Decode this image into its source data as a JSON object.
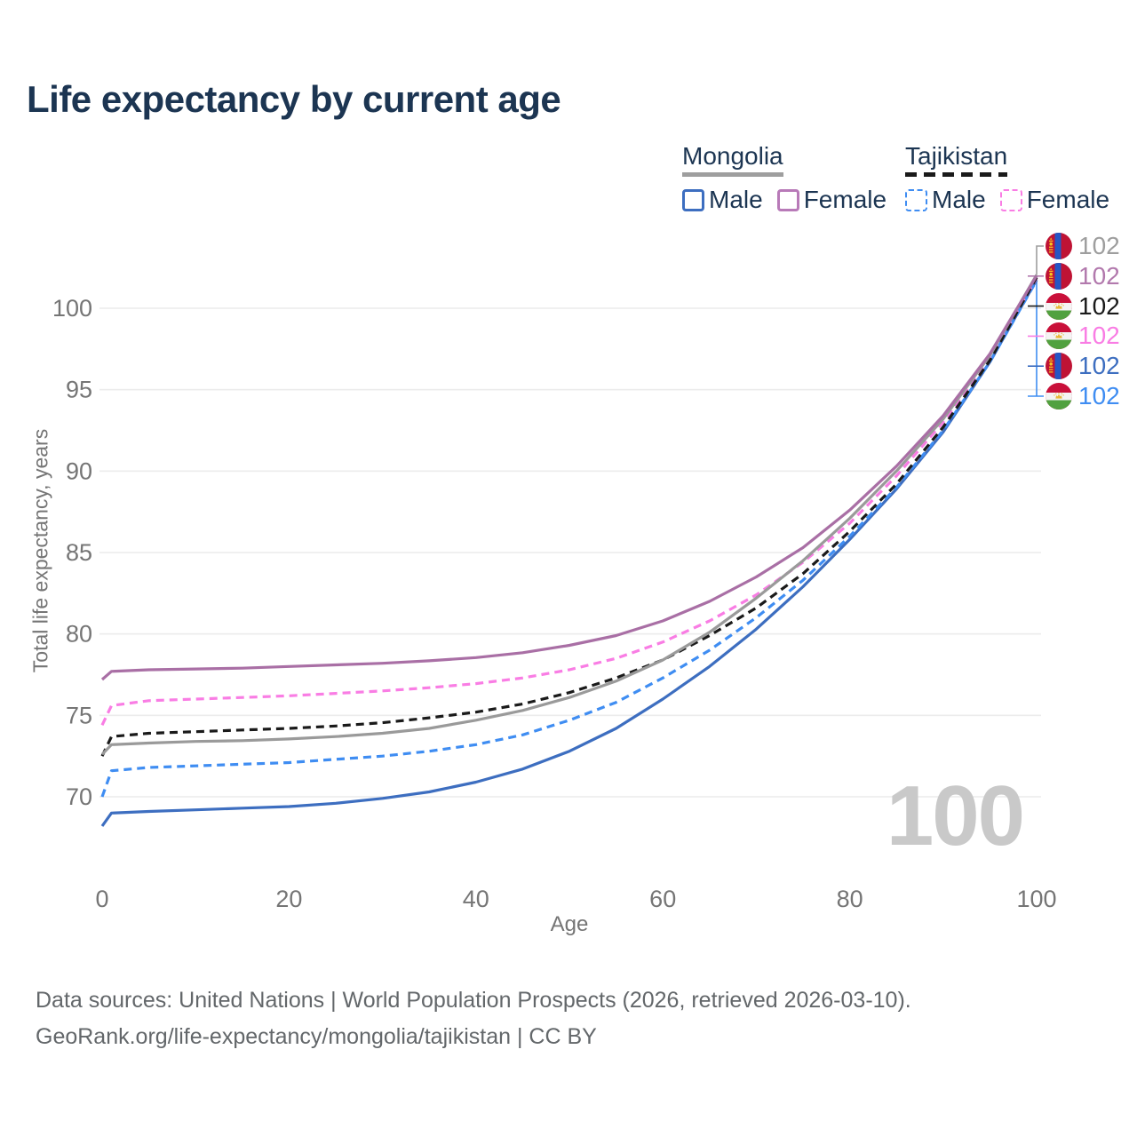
{
  "title": "Life expectancy by current age",
  "legend": {
    "groups": [
      {
        "country": "Mongolia",
        "underline_style": "solid",
        "underline_color": "#9e9e9e",
        "items": [
          {
            "label": "Male",
            "color": "#3d6ec0",
            "dashed": false
          },
          {
            "label": "Female",
            "color": "#b87ab8",
            "dashed": false
          }
        ]
      },
      {
        "country": "Tajikistan",
        "underline_style": "dashed",
        "underline_color": "#1a1a1a",
        "items": [
          {
            "label": "Male",
            "color": "#3f8df2",
            "dashed": true
          },
          {
            "label": "Female",
            "color": "#f97de4",
            "dashed": true
          }
        ]
      }
    ]
  },
  "chart_data": {
    "type": "line",
    "title": "Life expectancy by current age",
    "xlabel": "Age",
    "ylabel": "Total life expectancy, years",
    "xlim": [
      0,
      100
    ],
    "ylim": [
      66.5,
      103
    ],
    "x_ticks": [
      0,
      20,
      40,
      60,
      80,
      100
    ],
    "y_ticks": [
      70,
      75,
      80,
      85,
      90,
      95,
      100
    ],
    "grid": "horizontal",
    "legend_position": "top-right",
    "x": [
      0,
      1,
      5,
      10,
      15,
      20,
      25,
      30,
      35,
      40,
      45,
      50,
      55,
      60,
      65,
      70,
      75,
      80,
      85,
      90,
      95,
      100
    ],
    "series": [
      {
        "name": "Mongolia Male",
        "country": "Mongolia",
        "sex": "Male",
        "color": "#3d6ec0",
        "dashed": false,
        "values": [
          68.2,
          69.0,
          69.1,
          69.2,
          69.3,
          69.4,
          69.6,
          69.9,
          70.3,
          70.9,
          71.7,
          72.8,
          74.2,
          76.0,
          78.0,
          80.3,
          82.9,
          85.8,
          88.9,
          92.4,
          96.7,
          101.75
        ],
        "end_value": 102
      },
      {
        "name": "Tajikistan Male",
        "country": "Tajikistan",
        "sex": "Male",
        "color": "#3f8df2",
        "dashed": true,
        "values": [
          70.0,
          71.6,
          71.8,
          71.9,
          72.0,
          72.1,
          72.3,
          72.5,
          72.8,
          73.2,
          73.8,
          74.7,
          75.8,
          77.3,
          79.0,
          81.0,
          83.3,
          86.0,
          89.0,
          92.5,
          96.7,
          101.7
        ],
        "end_value": 102
      },
      {
        "name": "Tajikistan Female",
        "country": "Tajikistan",
        "sex": "Female",
        "color": "#f97de4",
        "dashed": true,
        "values": [
          74.4,
          75.6,
          75.9,
          76.0,
          76.1,
          76.2,
          76.35,
          76.5,
          76.7,
          76.95,
          77.3,
          77.8,
          78.5,
          79.5,
          80.8,
          82.4,
          84.4,
          86.8,
          89.7,
          93.0,
          97.0,
          101.85
        ],
        "end_value": 102
      },
      {
        "name": "Tajikistan Both sexes",
        "country": "Tajikistan",
        "sex": "Both",
        "color": "#1a1a1a",
        "dashed": true,
        "values": [
          72.5,
          73.7,
          73.9,
          74.0,
          74.1,
          74.2,
          74.35,
          74.55,
          74.85,
          75.2,
          75.7,
          76.4,
          77.3,
          78.4,
          79.9,
          81.6,
          83.7,
          86.3,
          89.2,
          92.7,
          96.8,
          101.9
        ],
        "end_value": 102
      },
      {
        "name": "Mongolia Both sexes",
        "country": "Mongolia",
        "sex": "Both",
        "color": "#9a9a9a",
        "dashed": false,
        "values": [
          72.6,
          73.2,
          73.3,
          73.4,
          73.45,
          73.55,
          73.7,
          73.9,
          74.2,
          74.7,
          75.3,
          76.1,
          77.1,
          78.4,
          80.1,
          82.2,
          84.5,
          87.1,
          90.0,
          93.2,
          97.1,
          102.05
        ],
        "end_value": 102
      },
      {
        "name": "Mongolia Female",
        "country": "Mongolia",
        "sex": "Female",
        "color": "#a96fa5",
        "dashed": false,
        "values": [
          77.2,
          77.7,
          77.8,
          77.85,
          77.9,
          78.0,
          78.1,
          78.2,
          78.35,
          78.55,
          78.85,
          79.3,
          79.9,
          80.8,
          82.0,
          83.5,
          85.3,
          87.6,
          90.3,
          93.4,
          97.2,
          102.0
        ],
        "end_value": 102
      }
    ],
    "end_labels": [
      {
        "value": "102",
        "color": "#9e9e9e",
        "flag": "mn",
        "series": "Mongolia Both sexes"
      },
      {
        "value": "102",
        "color": "#b279ad",
        "flag": "mn",
        "series": "Mongolia Female"
      },
      {
        "value": "102",
        "color": "#1a1a1a",
        "flag": "tj",
        "series": "Tajikistan Both sexes"
      },
      {
        "value": "102",
        "color": "#f97de4",
        "flag": "tj",
        "series": "Tajikistan Female"
      },
      {
        "value": "102",
        "color": "#3d6ec0",
        "flag": "mn",
        "series": "Mongolia Male"
      },
      {
        "value": "102",
        "color": "#3f8df2",
        "flag": "tj",
        "series": "Tajikistan Male"
      }
    ]
  },
  "watermark": "100",
  "footer": {
    "line1": "Data sources: United Nations | World Population Prospects (2026, retrieved 2026-03-10).",
    "line2": "GeoRank.org/life-expectancy/mongolia/tajikistan | CC BY"
  },
  "flag_colors": {
    "mn": {
      "red": "#bf1334",
      "blue": "#2656c4",
      "yellow": "#f5c51e"
    },
    "tj": {
      "red": "#c9103a",
      "white": "#f4f4f4",
      "green": "#51a13f",
      "yellow": "#e8b83a"
    }
  }
}
